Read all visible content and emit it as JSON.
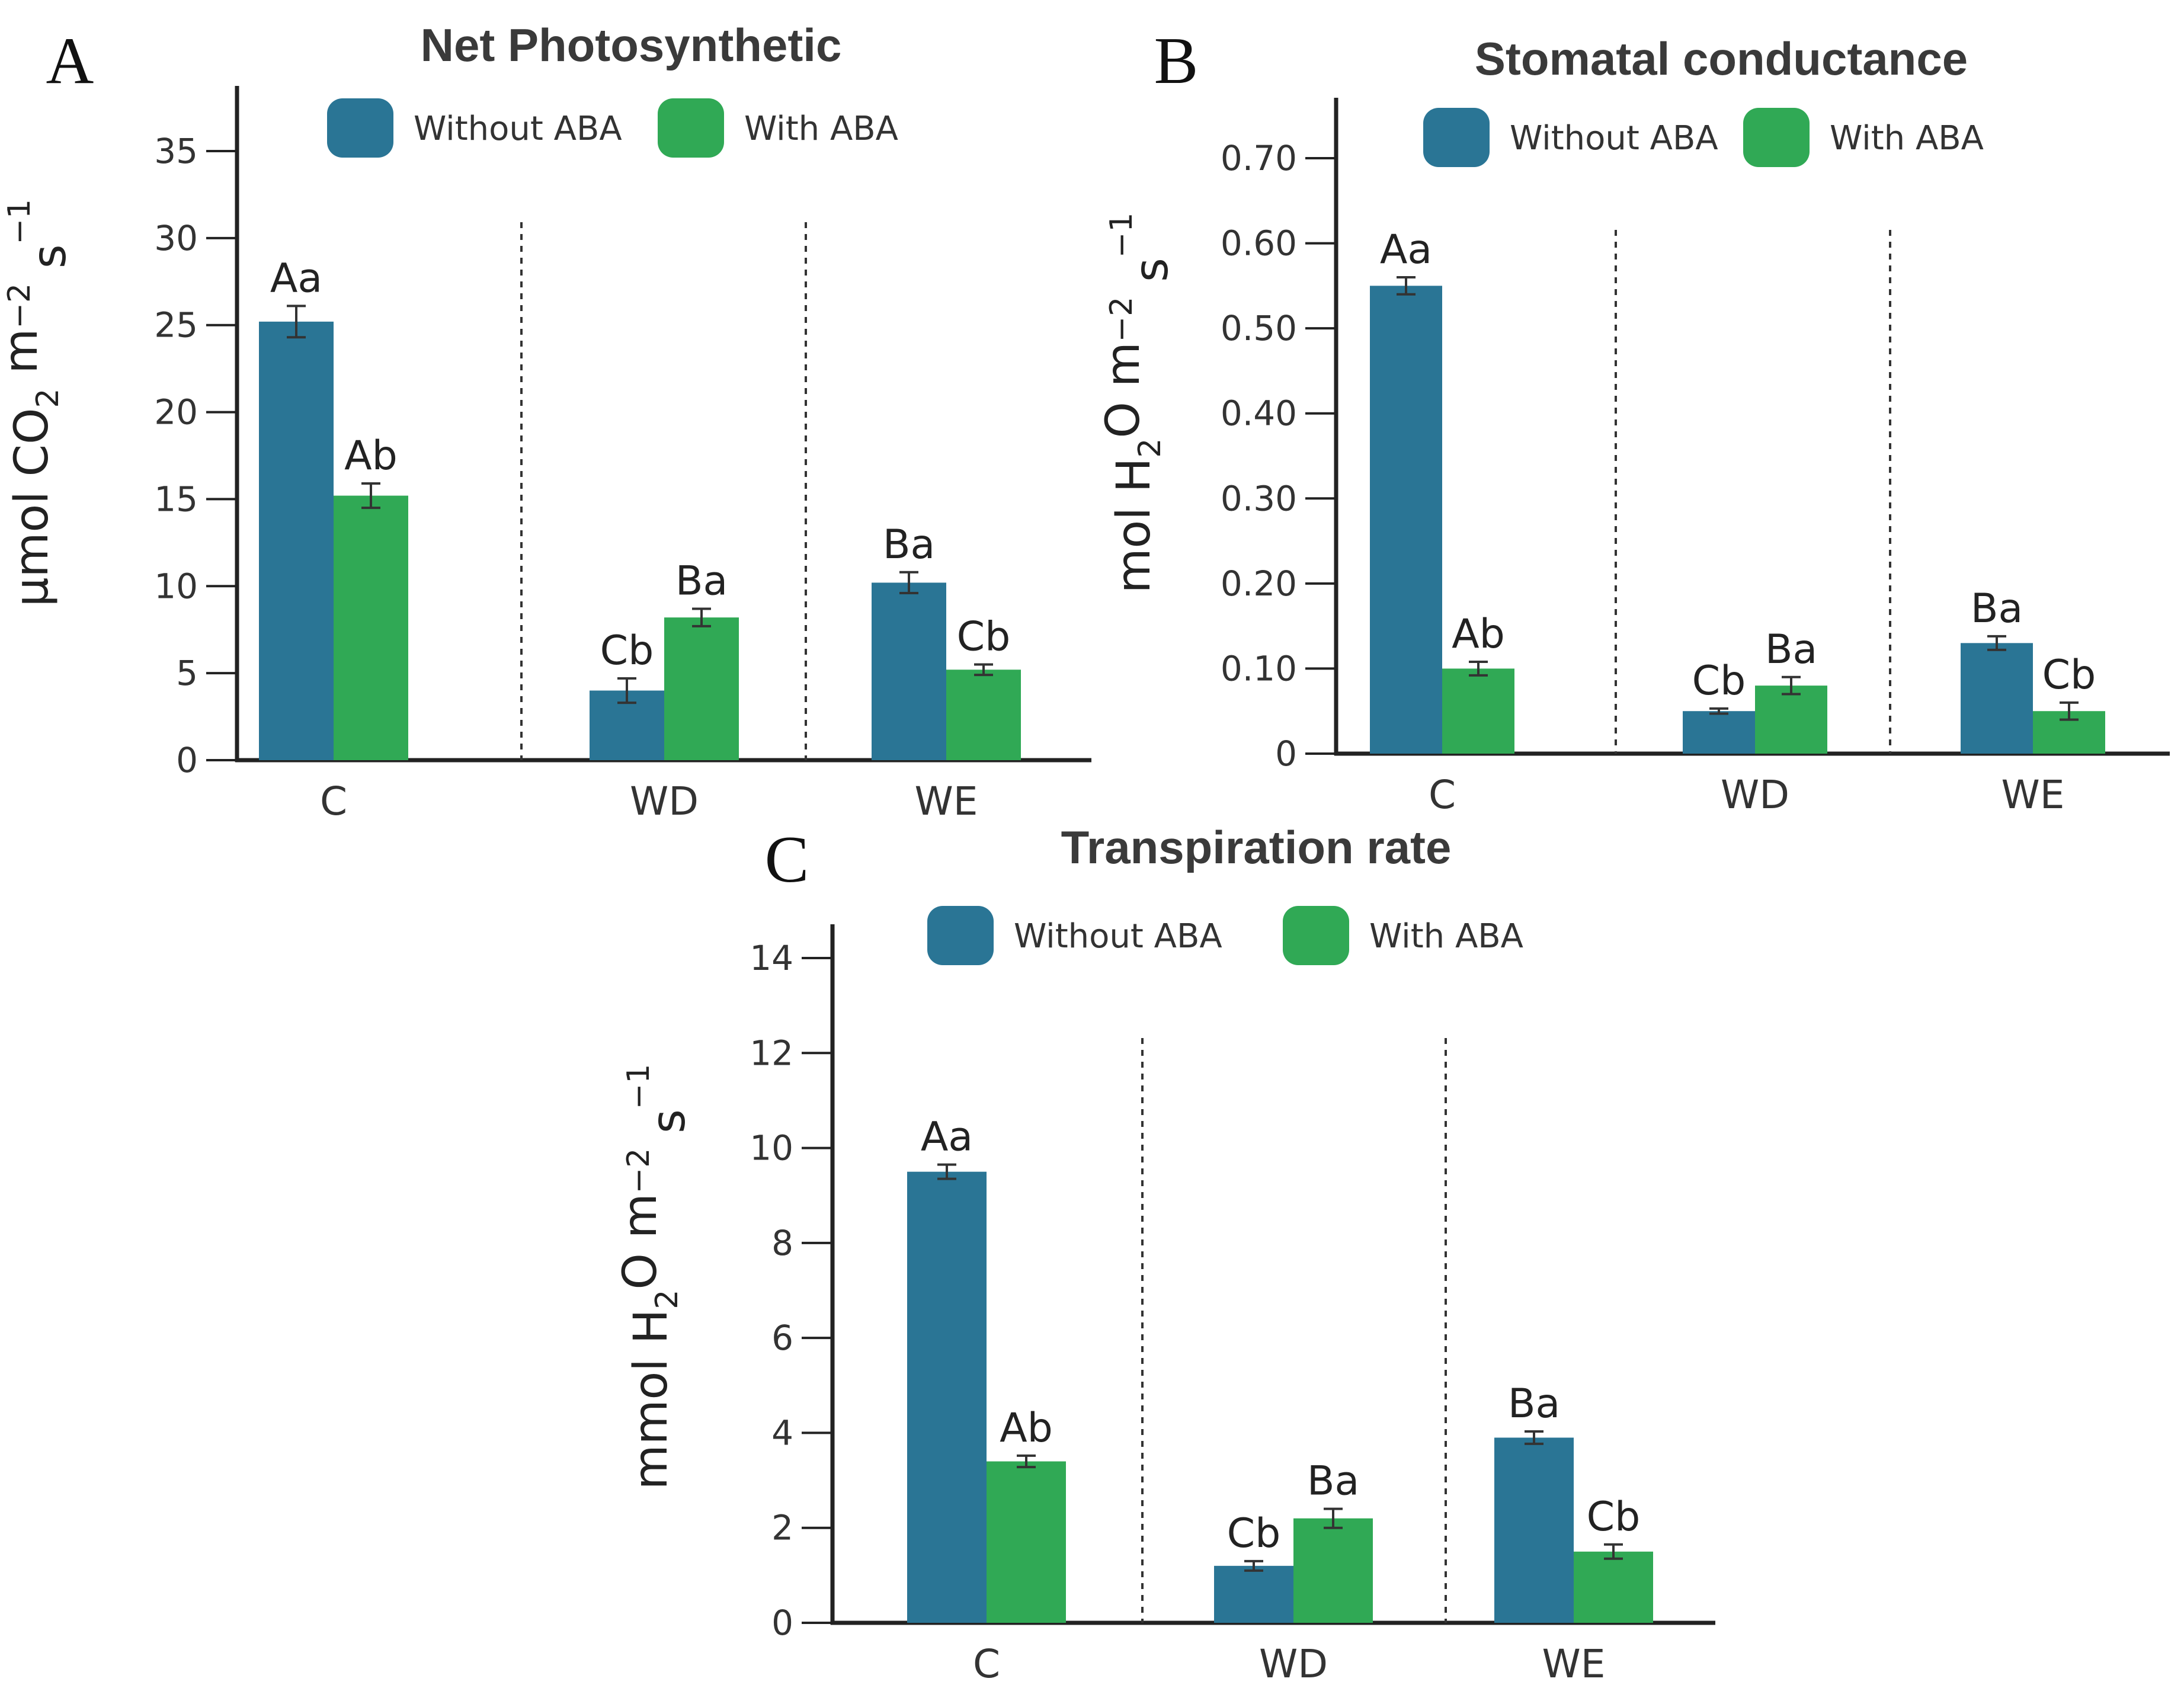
{
  "colors": {
    "without": "#2a7595",
    "with": "#30a955",
    "axis": "#222222"
  },
  "chart_data": [
    {
      "id": "A",
      "panel_letter": "A",
      "type": "bar",
      "title": "Net Photosynthetic",
      "ylabel": "μmol CO₂ m⁻² s⁻¹",
      "ylabel_parts": [
        "μmol CO",
        "2",
        " m",
        "−2",
        " s",
        "−1"
      ],
      "xlabel": "",
      "categories": [
        "C",
        "WD",
        "WE"
      ],
      "ylim": [
        0,
        38
      ],
      "yticks": [
        0,
        5,
        10,
        15,
        20,
        25,
        30,
        35
      ],
      "ytick_labels": [
        "0",
        "5",
        "10",
        "15",
        "20",
        "25",
        "30",
        "35"
      ],
      "legend": [
        "Without ABA",
        "With ABA"
      ],
      "series": [
        {
          "name": "Without ABA",
          "values": [
            25.2,
            4.0,
            10.2
          ],
          "errors": [
            0.9,
            0.7,
            0.6
          ],
          "labels": [
            "Aa",
            "Cb",
            "Ba"
          ]
        },
        {
          "name": "With ABA",
          "values": [
            15.2,
            8.2,
            5.2
          ],
          "errors": [
            0.7,
            0.5,
            0.3
          ],
          "labels": [
            "Ab",
            "Ba",
            "Cb"
          ]
        }
      ]
    },
    {
      "id": "B",
      "panel_letter": "B",
      "type": "bar",
      "title": "Stomatal conductance",
      "ylabel": "mol H₂O m⁻² s⁻¹",
      "ylabel_parts": [
        "mol H",
        "2",
        "O m",
        "−2",
        " s",
        "−1"
      ],
      "xlabel": "",
      "categories": [
        "C",
        "WD",
        "WE"
      ],
      "ylim": [
        0,
        0.75
      ],
      "yticks": [
        0,
        0.1,
        0.2,
        0.3,
        0.4,
        0.5,
        0.6,
        0.7
      ],
      "ytick_labels": [
        "0",
        "0.10",
        "0.20",
        "0.30",
        "0.40",
        "0.50",
        "0.60",
        "0.70"
      ],
      "legend": [
        "Without ABA",
        "With ABA"
      ],
      "series": [
        {
          "name": "Without ABA",
          "values": [
            0.55,
            0.05,
            0.13
          ],
          "errors": [
            0.01,
            0.003,
            0.008
          ],
          "labels": [
            "Aa",
            "Cb",
            "Ba"
          ]
        },
        {
          "name": "With ABA",
          "values": [
            0.1,
            0.08,
            0.05
          ],
          "errors": [
            0.008,
            0.01,
            0.01
          ],
          "labels": [
            "Ab",
            "Ba",
            "Cb"
          ]
        }
      ]
    },
    {
      "id": "C",
      "panel_letter": "C",
      "type": "bar",
      "title": "Transpiration rate",
      "ylabel": "mmol H₂O m⁻² s⁻¹",
      "ylabel_parts": [
        "mmol H",
        "2",
        "O m",
        "−2",
        " s",
        "−1"
      ],
      "xlabel": "",
      "categories": [
        "C",
        "WD",
        "WE"
      ],
      "ylim": [
        0,
        14.8
      ],
      "yticks": [
        0,
        2,
        4,
        6,
        8,
        10,
        12,
        14
      ],
      "ytick_labels": [
        "0",
        "2",
        "4",
        "6",
        "8",
        "10",
        "12",
        "14"
      ],
      "legend": [
        "Without ABA",
        "With ABA"
      ],
      "series": [
        {
          "name": "Without ABA",
          "values": [
            9.5,
            1.2,
            3.9
          ],
          "errors": [
            0.15,
            0.1,
            0.13
          ],
          "labels": [
            "Aa",
            "Cb",
            "Ba"
          ]
        },
        {
          "name": "With ABA",
          "values": [
            3.4,
            2.2,
            1.5
          ],
          "errors": [
            0.12,
            0.2,
            0.15
          ],
          "labels": [
            "Ab",
            "Ba",
            "Cb"
          ]
        }
      ]
    }
  ]
}
